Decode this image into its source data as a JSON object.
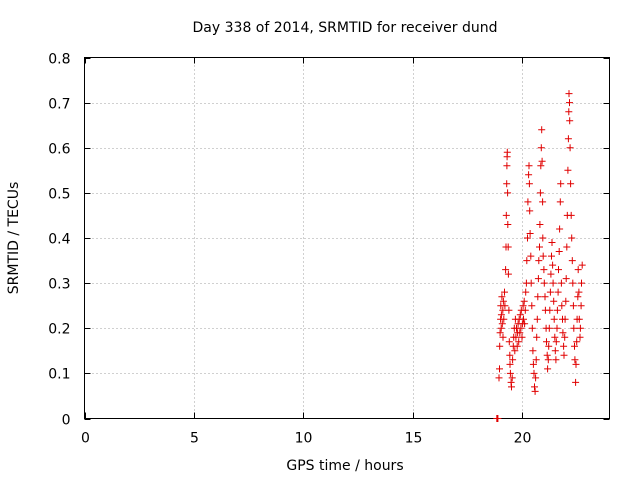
{
  "chart_data": {
    "type": "scatter",
    "title": "Day 338 of 2014, SRMTID for receiver dund",
    "xlabel": "GPS time / hours",
    "ylabel": "SRMTID / TECUs",
    "xlim": [
      0,
      24
    ],
    "ylim": [
      0,
      0.8
    ],
    "xticks": [
      0,
      5,
      10,
      15,
      20
    ],
    "xtick_labels": [
      "0",
      "5",
      "10",
      "15",
      "20"
    ],
    "yticks": [
      0,
      0.1,
      0.2,
      0.3,
      0.4,
      0.5,
      0.6,
      0.7,
      0.8
    ],
    "ytick_labels": [
      "0",
      "0.1",
      "0.2",
      "0.3",
      "0.4",
      "0.5",
      "0.6",
      "0.7",
      "0.8"
    ],
    "grid": true,
    "marker": "+",
    "color": "#e00000",
    "series": [
      {
        "name": "SRMTID",
        "points": [
          [
            18.85,
            0.0
          ],
          [
            18.88,
            0.0
          ],
          [
            18.9,
            0.0
          ],
          [
            18.95,
            0.09
          ],
          [
            18.97,
            0.11
          ],
          [
            18.98,
            0.16
          ],
          [
            19.0,
            0.19
          ],
          [
            19.02,
            0.22
          ],
          [
            19.03,
            0.25
          ],
          [
            19.05,
            0.2
          ],
          [
            19.06,
            0.23
          ],
          [
            19.08,
            0.27
          ],
          [
            19.1,
            0.21
          ],
          [
            19.12,
            0.24
          ],
          [
            19.13,
            0.18
          ],
          [
            19.15,
            0.26
          ],
          [
            19.17,
            0.22
          ],
          [
            19.2,
            0.28
          ],
          [
            19.22,
            0.25
          ],
          [
            19.25,
            0.33
          ],
          [
            19.27,
            0.38
          ],
          [
            19.28,
            0.45
          ],
          [
            19.3,
            0.52
          ],
          [
            19.31,
            0.56
          ],
          [
            19.32,
            0.58
          ],
          [
            19.33,
            0.59
          ],
          [
            19.34,
            0.5
          ],
          [
            19.35,
            0.43
          ],
          [
            19.37,
            0.38
          ],
          [
            19.38,
            0.32
          ],
          [
            19.4,
            0.24
          ],
          [
            19.42,
            0.17
          ],
          [
            19.44,
            0.14
          ],
          [
            19.45,
            0.12
          ],
          [
            19.47,
            0.1
          ],
          [
            19.5,
            0.08
          ],
          [
            19.52,
            0.07
          ],
          [
            19.55,
            0.09
          ],
          [
            19.57,
            0.13
          ],
          [
            19.6,
            0.16
          ],
          [
            19.62,
            0.18
          ],
          [
            19.65,
            0.2
          ],
          [
            19.67,
            0.15
          ],
          [
            19.7,
            0.22
          ],
          [
            19.72,
            0.18
          ],
          [
            19.75,
            0.2
          ],
          [
            19.78,
            0.16
          ],
          [
            19.8,
            0.19
          ],
          [
            19.82,
            0.21
          ],
          [
            19.85,
            0.17
          ],
          [
            19.87,
            0.22
          ],
          [
            19.9,
            0.19
          ],
          [
            19.92,
            0.23
          ],
          [
            19.95,
            0.2
          ],
          [
            19.97,
            0.24
          ],
          [
            20.0,
            0.18
          ],
          [
            20.02,
            0.21
          ],
          [
            20.05,
            0.25
          ],
          [
            20.07,
            0.22
          ],
          [
            20.1,
            0.26
          ],
          [
            20.12,
            0.21
          ],
          [
            20.15,
            0.24
          ],
          [
            20.17,
            0.28
          ],
          [
            20.2,
            0.3
          ],
          [
            20.22,
            0.35
          ],
          [
            20.25,
            0.4
          ],
          [
            20.27,
            0.48
          ],
          [
            20.3,
            0.54
          ],
          [
            20.32,
            0.56
          ],
          [
            20.34,
            0.52
          ],
          [
            20.35,
            0.46
          ],
          [
            20.37,
            0.41
          ],
          [
            20.4,
            0.36
          ],
          [
            20.42,
            0.3
          ],
          [
            20.45,
            0.25
          ],
          [
            20.47,
            0.2
          ],
          [
            20.5,
            0.15
          ],
          [
            20.52,
            0.12
          ],
          [
            20.55,
            0.1
          ],
          [
            20.57,
            0.07
          ],
          [
            20.6,
            0.06
          ],
          [
            20.62,
            0.09
          ],
          [
            20.65,
            0.13
          ],
          [
            20.67,
            0.18
          ],
          [
            20.7,
            0.22
          ],
          [
            20.72,
            0.27
          ],
          [
            20.75,
            0.31
          ],
          [
            20.77,
            0.35
          ],
          [
            20.8,
            0.38
          ],
          [
            20.82,
            0.43
          ],
          [
            20.84,
            0.5
          ],
          [
            20.86,
            0.56
          ],
          [
            20.88,
            0.6
          ],
          [
            20.9,
            0.64
          ],
          [
            20.92,
            0.57
          ],
          [
            20.94,
            0.48
          ],
          [
            20.95,
            0.4
          ],
          [
            20.97,
            0.36
          ],
          [
            21.0,
            0.33
          ],
          [
            21.02,
            0.3
          ],
          [
            21.05,
            0.27
          ],
          [
            21.07,
            0.24
          ],
          [
            21.1,
            0.2
          ],
          [
            21.12,
            0.17
          ],
          [
            21.15,
            0.14
          ],
          [
            21.17,
            0.11
          ],
          [
            21.2,
            0.13
          ],
          [
            21.22,
            0.16
          ],
          [
            21.25,
            0.2
          ],
          [
            21.27,
            0.24
          ],
          [
            21.3,
            0.28
          ],
          [
            21.32,
            0.32
          ],
          [
            21.35,
            0.36
          ],
          [
            21.37,
            0.39
          ],
          [
            21.4,
            0.34
          ],
          [
            21.42,
            0.3
          ],
          [
            21.45,
            0.26
          ],
          [
            21.47,
            0.22
          ],
          [
            21.5,
            0.18
          ],
          [
            21.52,
            0.15
          ],
          [
            21.55,
            0.13
          ],
          [
            21.57,
            0.17
          ],
          [
            21.6,
            0.2
          ],
          [
            21.62,
            0.24
          ],
          [
            21.65,
            0.28
          ],
          [
            21.67,
            0.33
          ],
          [
            21.7,
            0.37
          ],
          [
            21.72,
            0.42
          ],
          [
            21.75,
            0.48
          ],
          [
            21.77,
            0.52
          ],
          [
            21.8,
            0.3
          ],
          [
            21.82,
            0.25
          ],
          [
            21.85,
            0.22
          ],
          [
            21.87,
            0.19
          ],
          [
            21.9,
            0.16
          ],
          [
            21.92,
            0.14
          ],
          [
            21.95,
            0.18
          ],
          [
            21.97,
            0.22
          ],
          [
            22.0,
            0.26
          ],
          [
            22.02,
            0.31
          ],
          [
            22.05,
            0.38
          ],
          [
            22.07,
            0.45
          ],
          [
            22.1,
            0.55
          ],
          [
            22.12,
            0.62
          ],
          [
            22.14,
            0.68
          ],
          [
            22.15,
            0.72
          ],
          [
            22.17,
            0.7
          ],
          [
            22.18,
            0.66
          ],
          [
            22.2,
            0.6
          ],
          [
            22.22,
            0.52
          ],
          [
            22.25,
            0.45
          ],
          [
            22.27,
            0.4
          ],
          [
            22.3,
            0.35
          ],
          [
            22.32,
            0.3
          ],
          [
            22.35,
            0.25
          ],
          [
            22.37,
            0.2
          ],
          [
            22.4,
            0.16
          ],
          [
            22.42,
            0.13
          ],
          [
            22.45,
            0.08
          ],
          [
            22.47,
            0.12
          ],
          [
            22.5,
            0.17
          ],
          [
            22.52,
            0.22
          ],
          [
            22.55,
            0.27
          ],
          [
            22.57,
            0.33
          ],
          [
            22.6,
            0.28
          ],
          [
            22.62,
            0.22
          ],
          [
            22.65,
            0.18
          ],
          [
            22.67,
            0.2
          ],
          [
            22.7,
            0.25
          ],
          [
            22.72,
            0.3
          ],
          [
            22.75,
            0.34
          ]
        ]
      }
    ]
  }
}
